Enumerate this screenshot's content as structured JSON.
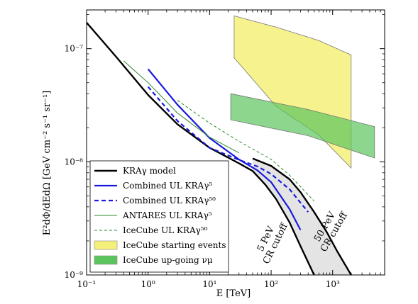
{
  "chart_data": {
    "type": "line",
    "title": "",
    "xlabel": "E [TeV]",
    "ylabel": "E²dΦ/dEdΩ [GeV cm⁻² s⁻¹ sr⁻¹]",
    "xscale": "log",
    "yscale": "log",
    "xlim": [
      0.1,
      7000
    ],
    "ylim": [
      1e-09,
      2.2e-07
    ],
    "x_ticks": [
      {
        "value": 0.1,
        "label": "10⁻¹"
      },
      {
        "value": 1,
        "label": "10⁰"
      },
      {
        "value": 10,
        "label": "10¹"
      },
      {
        "value": 100,
        "label": "10²"
      },
      {
        "value": 1000,
        "label": "10³"
      }
    ],
    "y_ticks": [
      {
        "value": 1e-09,
        "label": "10⁻⁹"
      },
      {
        "value": 1e-08,
        "label": "10⁻⁸"
      },
      {
        "value": 1e-07,
        "label": "10⁻⁷"
      }
    ],
    "legend_position": "bottom-left",
    "annotations": [
      {
        "text": "5 PeV",
        "line": 1
      },
      {
        "text": "CR cutoff",
        "line": 2
      },
      {
        "text": "50 PeV",
        "line": 1
      },
      {
        "text": "CR cutoff",
        "line": 2
      }
    ],
    "cutoff_fill_color": "#e4e4e4",
    "series": [
      {
        "name": "KRAγ model, 5 PeV CR cutoff",
        "legend": false,
        "color": "#000000",
        "width": 2.4,
        "dash": "",
        "x": [
          0.1,
          0.3,
          1,
          3,
          10,
          30,
          50,
          80,
          120,
          200,
          300,
          500
        ],
        "y": [
          1.7e-07,
          8.5e-08,
          3.9e-08,
          2.15e-08,
          1.33e-08,
          9.7e-09,
          8.3e-09,
          6.3e-09,
          4.7e-09,
          2.9e-09,
          1.8e-09,
          1e-09
        ]
      },
      {
        "name": "KRAγ model, 50 PeV CR cutoff",
        "legend": false,
        "color": "#000000",
        "width": 2.4,
        "dash": "",
        "x": [
          50,
          100,
          200,
          300,
          500,
          800,
          1200,
          2000
        ],
        "y": [
          1.07e-08,
          9.2e-09,
          7e-09,
          5.4e-09,
          3.6e-09,
          2.4e-09,
          1.6e-09,
          1e-09
        ]
      },
      {
        "name": "Combined UL KRAγ⁵",
        "legend": false,
        "color": "#1a1adc",
        "width": 2.2,
        "dash": "",
        "x": [
          1,
          3,
          10,
          30,
          60,
          100,
          200,
          300
        ],
        "y": [
          6.6e-08,
          3.2e-08,
          1.62e-08,
          1.05e-08,
          8.4e-09,
          6.6e-09,
          3.8e-09,
          2.5e-09
        ]
      },
      {
        "name": "Combined UL KRAγ⁵⁰",
        "legend": false,
        "color": "#1a1adc",
        "width": 2.2,
        "dash": "6,4",
        "x": [
          1,
          3,
          10,
          30,
          60,
          100,
          200,
          400
        ],
        "y": [
          4.6e-08,
          2.3e-08,
          1.33e-08,
          1.04e-08,
          9.1e-09,
          7.8e-09,
          5.7e-09,
          3.6e-09
        ]
      },
      {
        "name": "ANTARES UL KRAγ⁵",
        "legend": false,
        "color": "#2e8b2e",
        "width": 1.0,
        "dash": "",
        "x": [
          0.4,
          1,
          3,
          10,
          30
        ],
        "y": [
          7.8e-08,
          5e-08,
          2.7e-08,
          1.65e-08,
          1.2e-08
        ]
      },
      {
        "name": "IceCube UL KRAγ⁵⁰",
        "legend": false,
        "color": "#2e8b2e",
        "width": 1.0,
        "dash": "4,3",
        "x": [
          3,
          10,
          30,
          100,
          200,
          500
        ],
        "y": [
          3.5e-08,
          2.2e-08,
          1.52e-08,
          1.05e-08,
          7.6e-09,
          4.5e-09
        ]
      }
    ],
    "bands": [
      {
        "name": "IceCube starting events",
        "fill": "#f5f07a",
        "stroke": "#777777",
        "opacity": 0.85,
        "points": [
          [
            25,
            1.95e-07
          ],
          [
            120,
            1.55e-07
          ],
          [
            600,
            1.18e-07
          ],
          [
            2000,
            8.8e-08
          ],
          [
            2000,
            8.8e-09
          ],
          [
            600,
            1.72e-08
          ],
          [
            120,
            3.1e-08
          ],
          [
            25,
            8.3e-08
          ]
        ]
      },
      {
        "name": "IceCube up-going νμ",
        "fill": "#5cc45c",
        "stroke": "#777777",
        "opacity": 0.7,
        "points": [
          [
            22,
            4e-08
          ],
          [
            400,
            2.9e-08
          ],
          [
            4800,
            2.05e-08
          ],
          [
            4800,
            1.08e-08
          ],
          [
            400,
            1.7e-08
          ],
          [
            22,
            2.35e-08
          ]
        ]
      }
    ],
    "legend": [
      {
        "label": "KRAγ model",
        "kind": "line",
        "color": "#000000",
        "width": 2.4,
        "dash": ""
      },
      {
        "label": "Combined UL KRAγ⁵",
        "kind": "line",
        "color": "#1a1adc",
        "width": 2.2,
        "dash": ""
      },
      {
        "label": "Combined UL KRAγ⁵⁰",
        "kind": "line",
        "color": "#1a1adc",
        "width": 2.2,
        "dash": "6,4"
      },
      {
        "label": "ANTARES UL KRAγ⁵",
        "kind": "line",
        "color": "#2e8b2e",
        "width": 1.0,
        "dash": ""
      },
      {
        "label": "IceCube UL KRAγ⁵⁰",
        "kind": "line",
        "color": "#2e8b2e",
        "width": 1.0,
        "dash": "4,3"
      },
      {
        "label": "IceCube starting events",
        "kind": "patch",
        "color": "#f5f07a"
      },
      {
        "label": "IceCube up-going νμ",
        "kind": "patch",
        "color": "#5cc45c"
      }
    ]
  }
}
